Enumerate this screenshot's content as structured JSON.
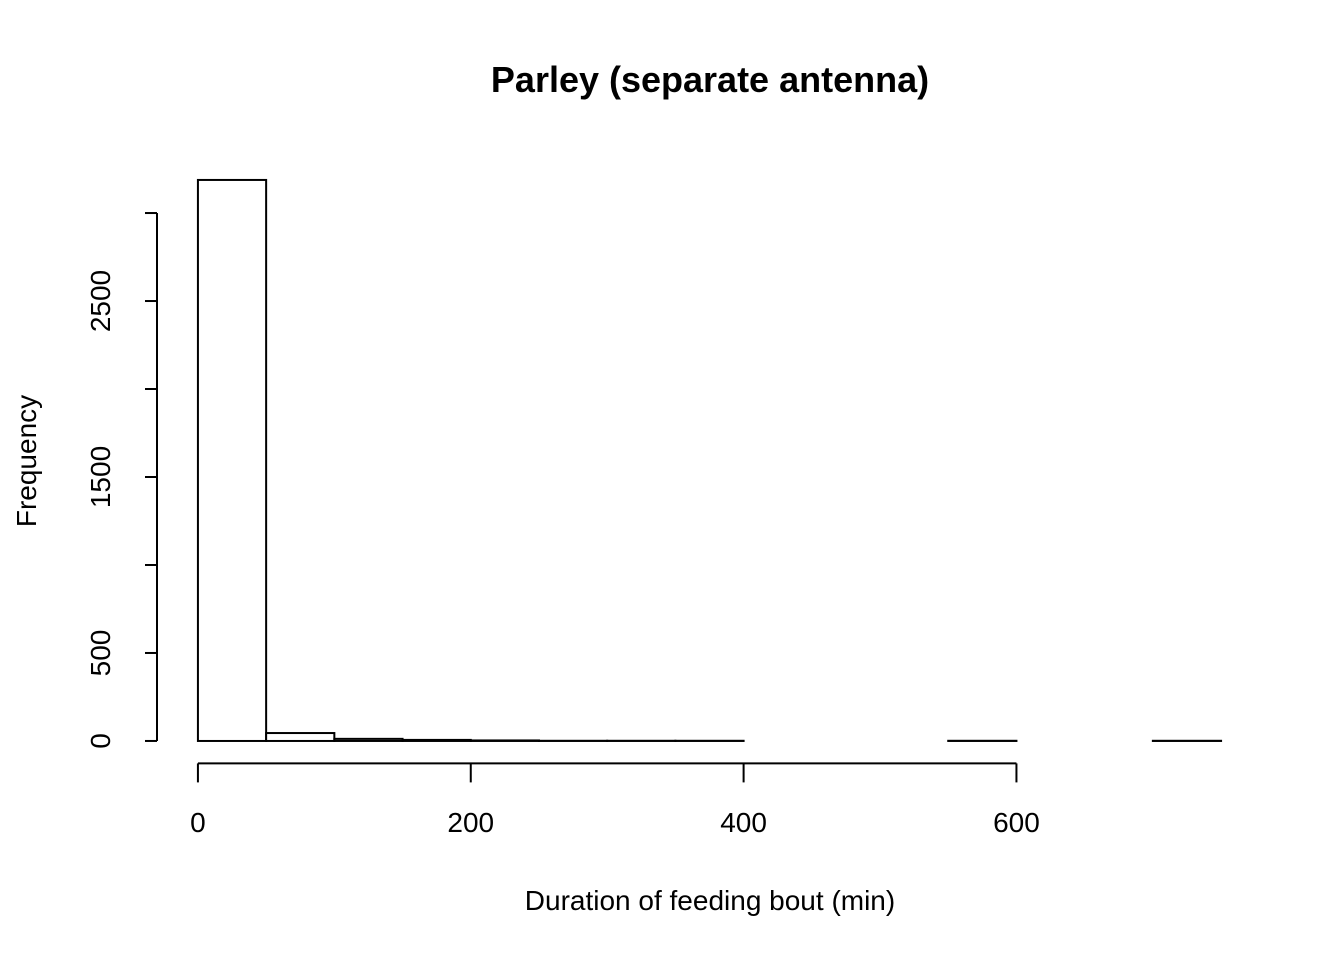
{
  "chart_data": {
    "type": "histogram",
    "title": "Parley (separate antenna)",
    "x_label": "Duration of feeding bout (min)",
    "y_label": "Frequency",
    "bins": [
      0,
      50,
      100,
      150,
      200,
      250,
      300,
      350,
      400,
      450,
      500,
      550,
      600,
      650,
      700,
      750
    ],
    "values": [
      3188,
      45,
      12,
      6,
      3,
      1,
      1,
      1,
      0,
      0,
      0,
      1,
      0,
      0,
      1
    ],
    "color": "#ffffff",
    "edge_color": "#000000",
    "xlim": [
      -30,
      780
    ],
    "ylim": [
      -127.5,
      3315
    ],
    "xticks": [
      0,
      200,
      400,
      600
    ],
    "yticks": [
      0,
      500,
      {
        "value": 1000,
        "label": null
      },
      1500,
      {
        "value": 2000,
        "label": null
      },
      2500,
      {
        "value": 3000,
        "label": null
      }
    ],
    "grid": false
  }
}
